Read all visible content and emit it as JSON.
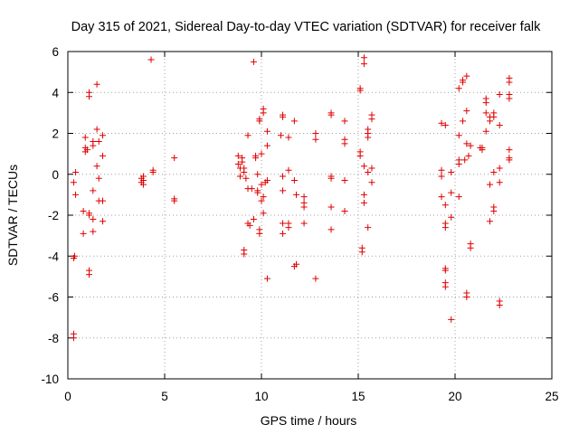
{
  "chart_data": {
    "type": "scatter",
    "title": "Day 315 of 2021, Sidereal Day-to-day VTEC variation (SDTVAR) for receiver falk",
    "xlabel": "GPS time / hours",
    "ylabel": "SDTVAR / TECUs",
    "xlim": [
      0,
      25
    ],
    "ylim": [
      -10,
      6
    ],
    "xticks": [
      0,
      5,
      10,
      15,
      20,
      25
    ],
    "yticks": [
      -10,
      -8,
      -6,
      -4,
      -2,
      0,
      2,
      4,
      6
    ],
    "grid": true,
    "marker": "plus",
    "color": "#e00000",
    "series": [
      {
        "name": "falk",
        "points": [
          [
            0.3,
            -7.8
          ],
          [
            0.3,
            -8.0
          ],
          [
            0.35,
            -4.0
          ],
          [
            0.3,
            -4.1
          ],
          [
            0.4,
            0.1
          ],
          [
            0.3,
            -0.4
          ],
          [
            0.4,
            -1.0
          ],
          [
            0.8,
            -1.8
          ],
          [
            0.8,
            -2.9
          ],
          [
            0.9,
            1.1
          ],
          [
            0.9,
            1.3
          ],
          [
            0.9,
            1.8
          ],
          [
            1.0,
            1.2
          ],
          [
            1.1,
            -4.7
          ],
          [
            1.1,
            -4.9
          ],
          [
            1.1,
            3.8
          ],
          [
            1.1,
            4.0
          ],
          [
            1.1,
            -1.9
          ],
          [
            1.1,
            -2.0
          ],
          [
            1.3,
            -0.8
          ],
          [
            1.3,
            -2.2
          ],
          [
            1.3,
            -2.8
          ],
          [
            1.3,
            1.4
          ],
          [
            1.3,
            1.6
          ],
          [
            1.5,
            4.4
          ],
          [
            1.5,
            2.2
          ],
          [
            1.6,
            1.6
          ],
          [
            1.5,
            0.4
          ],
          [
            1.6,
            -0.2
          ],
          [
            1.6,
            -1.3
          ],
          [
            1.8,
            1.9
          ],
          [
            1.8,
            0.9
          ],
          [
            1.8,
            -2.3
          ],
          [
            1.8,
            -1.3
          ],
          [
            3.8,
            -0.2
          ],
          [
            3.8,
            -0.4
          ],
          [
            3.9,
            -0.5
          ],
          [
            3.9,
            -0.1
          ],
          [
            3.9,
            -0.3
          ],
          [
            4.3,
            5.6
          ],
          [
            4.4,
            0.2
          ],
          [
            4.4,
            0.1
          ],
          [
            5.5,
            0.8
          ],
          [
            5.5,
            -1.2
          ],
          [
            5.5,
            -1.3
          ],
          [
            8.8,
            0.9
          ],
          [
            8.8,
            0.5
          ],
          [
            8.9,
            0.3
          ],
          [
            8.9,
            -0.1
          ],
          [
            9.0,
            0.8
          ],
          [
            9.0,
            0.6
          ],
          [
            9.1,
            0.3
          ],
          [
            9.1,
            0.1
          ],
          [
            9.2,
            -0.2
          ],
          [
            9.1,
            -3.7
          ],
          [
            9.1,
            -3.9
          ],
          [
            9.3,
            1.9
          ],
          [
            9.3,
            -0.7
          ],
          [
            9.3,
            -2.4
          ],
          [
            9.4,
            -2.5
          ],
          [
            9.5,
            -0.7
          ],
          [
            9.6,
            5.5
          ],
          [
            9.6,
            -2.2
          ],
          [
            9.7,
            0.9
          ],
          [
            9.7,
            0.8
          ],
          [
            9.8,
            0.0
          ],
          [
            9.8,
            -0.8
          ],
          [
            9.8,
            -0.9
          ],
          [
            9.9,
            2.7
          ],
          [
            9.9,
            2.6
          ],
          [
            9.9,
            -2.7
          ],
          [
            9.9,
            -2.9
          ],
          [
            10.0,
            -0.5
          ],
          [
            10.0,
            -1.3
          ],
          [
            10.1,
            3.2
          ],
          [
            10.1,
            3.0
          ],
          [
            10.1,
            -1.9
          ],
          [
            10.0,
            1.0
          ],
          [
            10.3,
            2.1
          ],
          [
            10.3,
            1.4
          ],
          [
            10.3,
            -0.3
          ],
          [
            10.3,
            -5.1
          ],
          [
            10.1,
            -1.1
          ],
          [
            10.2,
            -0.4
          ],
          [
            11.1,
            2.9
          ],
          [
            11.1,
            2.8
          ],
          [
            11.0,
            1.9
          ],
          [
            11.1,
            -0.1
          ],
          [
            11.1,
            -0.8
          ],
          [
            11.1,
            -2.4
          ],
          [
            11.1,
            -2.9
          ],
          [
            11.4,
            1.8
          ],
          [
            11.4,
            0.2
          ],
          [
            11.4,
            -2.4
          ],
          [
            11.4,
            -2.6
          ],
          [
            11.7,
            2.6
          ],
          [
            11.7,
            -0.3
          ],
          [
            11.8,
            -1.0
          ],
          [
            11.8,
            -4.4
          ],
          [
            11.7,
            -4.5
          ],
          [
            12.2,
            -1.1
          ],
          [
            12.2,
            -1.4
          ],
          [
            12.2,
            -1.6
          ],
          [
            12.2,
            -2.4
          ],
          [
            12.8,
            2.0
          ],
          [
            12.8,
            1.7
          ],
          [
            12.8,
            -5.1
          ],
          [
            13.6,
            3.0
          ],
          [
            13.6,
            2.9
          ],
          [
            13.6,
            -0.1
          ],
          [
            13.6,
            -0.2
          ],
          [
            13.6,
            -1.6
          ],
          [
            13.6,
            -2.7
          ],
          [
            14.3,
            2.6
          ],
          [
            14.3,
            1.7
          ],
          [
            14.3,
            1.5
          ],
          [
            14.3,
            -0.3
          ],
          [
            14.3,
            -1.8
          ],
          [
            15.1,
            4.2
          ],
          [
            15.1,
            4.1
          ],
          [
            15.1,
            1.1
          ],
          [
            15.1,
            0.9
          ],
          [
            15.2,
            -3.6
          ],
          [
            15.2,
            -3.8
          ],
          [
            15.3,
            5.7
          ],
          [
            15.3,
            5.4
          ],
          [
            15.3,
            0.4
          ],
          [
            15.3,
            -1.0
          ],
          [
            15.3,
            -1.4
          ],
          [
            15.5,
            2.2
          ],
          [
            15.5,
            2.0
          ],
          [
            15.5,
            1.8
          ],
          [
            15.5,
            0.1
          ],
          [
            15.5,
            -2.6
          ],
          [
            15.7,
            2.9
          ],
          [
            15.7,
            2.7
          ],
          [
            15.7,
            0.3
          ],
          [
            15.7,
            -0.4
          ],
          [
            19.3,
            2.5
          ],
          [
            19.3,
            0.2
          ],
          [
            19.3,
            -0.1
          ],
          [
            19.3,
            -1.1
          ],
          [
            19.5,
            2.4
          ],
          [
            19.5,
            -1.5
          ],
          [
            19.5,
            -2.4
          ],
          [
            19.5,
            -2.6
          ],
          [
            19.5,
            -4.6
          ],
          [
            19.5,
            -4.7
          ],
          [
            19.5,
            -5.3
          ],
          [
            19.5,
            -5.5
          ],
          [
            19.8,
            0.1
          ],
          [
            19.8,
            -0.9
          ],
          [
            19.8,
            -2.1
          ],
          [
            19.8,
            -7.1
          ],
          [
            20.2,
            4.2
          ],
          [
            20.2,
            1.9
          ],
          [
            20.2,
            0.7
          ],
          [
            20.2,
            0.5
          ],
          [
            20.2,
            -1.1
          ],
          [
            20.4,
            4.6
          ],
          [
            20.4,
            4.5
          ],
          [
            20.4,
            2.6
          ],
          [
            20.5,
            0.7
          ],
          [
            20.6,
            4.8
          ],
          [
            20.6,
            3.1
          ],
          [
            20.6,
            1.5
          ],
          [
            20.7,
            0.9
          ],
          [
            20.8,
            1.4
          ],
          [
            20.8,
            -3.4
          ],
          [
            20.8,
            -3.6
          ],
          [
            20.6,
            -5.8
          ],
          [
            20.6,
            -6.0
          ],
          [
            21.3,
            1.3
          ],
          [
            21.4,
            1.2
          ],
          [
            21.4,
            1.3
          ],
          [
            21.6,
            3.7
          ],
          [
            21.6,
            3.5
          ],
          [
            21.6,
            3.0
          ],
          [
            21.6,
            2.1
          ],
          [
            21.8,
            2.8
          ],
          [
            21.8,
            2.6
          ],
          [
            21.8,
            -0.5
          ],
          [
            21.8,
            -2.3
          ],
          [
            22.0,
            3.0
          ],
          [
            22.0,
            2.8
          ],
          [
            22.0,
            0.1
          ],
          [
            22.0,
            -1.6
          ],
          [
            22.0,
            -1.8
          ],
          [
            22.3,
            3.9
          ],
          [
            22.3,
            2.4
          ],
          [
            22.3,
            0.3
          ],
          [
            22.3,
            -0.4
          ],
          [
            22.3,
            -6.2
          ],
          [
            22.3,
            -6.4
          ],
          [
            22.8,
            4.7
          ],
          [
            22.8,
            4.5
          ],
          [
            22.8,
            3.9
          ],
          [
            22.8,
            3.7
          ],
          [
            22.8,
            1.2
          ],
          [
            22.8,
            0.8
          ],
          [
            22.8,
            0.7
          ]
        ]
      }
    ]
  }
}
